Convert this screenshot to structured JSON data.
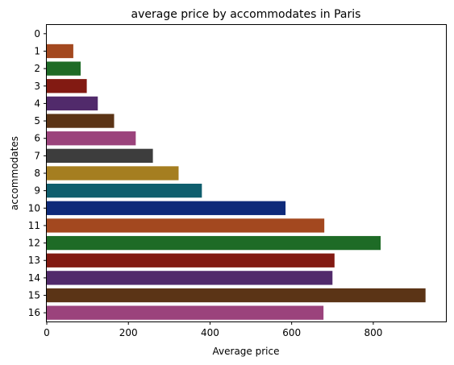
{
  "chart_data": {
    "type": "bar",
    "orientation": "horizontal",
    "title": "average price by accommodates in Paris",
    "xlabel": "Average price",
    "ylabel": "accommodates",
    "categories": [
      "0",
      "1",
      "2",
      "3",
      "4",
      "5",
      "6",
      "7",
      "8",
      "9",
      "10",
      "11",
      "12",
      "13",
      "14",
      "15",
      "16"
    ],
    "values": [
      0,
      65,
      83,
      98,
      125,
      165,
      218,
      260,
      323,
      380,
      585,
      680,
      818,
      705,
      700,
      928,
      678
    ],
    "colors": [
      "#1f77b4",
      "#a3481f",
      "#1e6b26",
      "#821a12",
      "#512a6b",
      "#5b3416",
      "#9b437c",
      "#3d3d3d",
      "#a57e20",
      "#0f5e6d",
      "#0e2a7a",
      "#a3481f",
      "#1e6b26",
      "#821a12",
      "#512a6b",
      "#5b3416",
      "#9b437c"
    ],
    "xlim": [
      0,
      978
    ],
    "xticks": [
      0,
      200,
      400,
      600,
      800
    ],
    "grid": false
  }
}
